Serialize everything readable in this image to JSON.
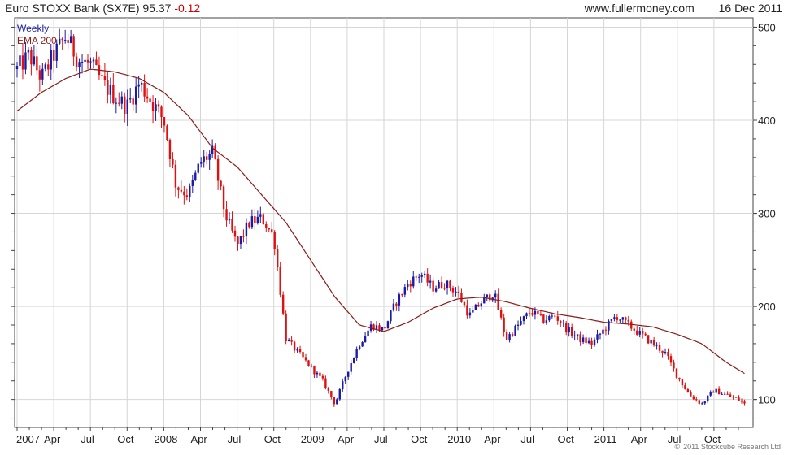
{
  "header": {
    "title": "Euro STOXX Bank (SX7E)",
    "last_price": "95.37",
    "change": "-0.12",
    "site": "www.fullermoney.com",
    "date": "16 Dec 2011"
  },
  "legend": {
    "weekly_label": "Weekly",
    "ema_label": "EMA 200"
  },
  "credit": {
    "mark": "©",
    "text": "2011 Stockcube Research Ltd"
  },
  "colors": {
    "up": "#1a1aa6",
    "down": "#e01010",
    "ema": "#8b1a1a",
    "grid": "#d6d6d6",
    "axis": "#444444",
    "text": "#222222"
  },
  "chart_data": {
    "type": "line",
    "x_axis": {
      "range": [
        "2007-01",
        "2011-12"
      ],
      "tick_labels": [
        "2007",
        "Apr",
        "Jul",
        "Oct",
        "2008",
        "Apr",
        "Jul",
        "Oct",
        "2009",
        "Apr",
        "Jul",
        "Oct",
        "2010",
        "Apr",
        "Jul",
        "Oct",
        "2011",
        "Apr",
        "Jul",
        "Oct"
      ],
      "tick_months": [
        0,
        3,
        6,
        9,
        12,
        15,
        18,
        21,
        24,
        27,
        30,
        33,
        36,
        39,
        42,
        45,
        48,
        51,
        54,
        57
      ]
    },
    "y_axis": {
      "range": [
        70,
        510
      ],
      "tick_labels": [
        "100",
        "200",
        "300",
        "400",
        "500"
      ],
      "ticks": [
        100,
        200,
        300,
        400,
        500
      ],
      "position": "right"
    },
    "grid": true,
    "legend_placement": "top-left",
    "series": [
      {
        "name": "Weekly",
        "style": "candles",
        "x_months": [
          0,
          1,
          2,
          3,
          4,
          5,
          6,
          7,
          8,
          9,
          10,
          11,
          12,
          13,
          14,
          15,
          16,
          17,
          18,
          19,
          20,
          21,
          22,
          23,
          24,
          25,
          26,
          27,
          28,
          29,
          30,
          31,
          32,
          33,
          34,
          35,
          36,
          37,
          38,
          39,
          40,
          41,
          42,
          43,
          44,
          45,
          46,
          47,
          48,
          49,
          50,
          51,
          52,
          53,
          54,
          55,
          56,
          57,
          58,
          59,
          59.5
        ],
        "values": [
          455,
          470,
          445,
          470,
          490,
          465,
          460,
          440,
          425,
          415,
          440,
          420,
          400,
          330,
          320,
          355,
          365,
          300,
          265,
          290,
          295,
          275,
          165,
          150,
          135,
          120,
          95,
          130,
          160,
          180,
          175,
          205,
          225,
          235,
          220,
          225,
          215,
          190,
          205,
          215,
          165,
          180,
          195,
          185,
          190,
          175,
          165,
          160,
          175,
          190,
          180,
          170,
          160,
          150,
          125,
          105,
          95,
          110,
          105,
          100,
          95
        ]
      },
      {
        "name": "EMA 200",
        "style": "line",
        "x_months": [
          0,
          2,
          4,
          6,
          8,
          10,
          12,
          14,
          16,
          18,
          20,
          22,
          24,
          26,
          28,
          30,
          32,
          34,
          36,
          38,
          40,
          42,
          44,
          46,
          48,
          50,
          52,
          54,
          56,
          58,
          59.5
        ],
        "values": [
          410,
          430,
          445,
          455,
          452,
          445,
          430,
          405,
          370,
          350,
          320,
          290,
          250,
          210,
          180,
          173,
          183,
          198,
          208,
          210,
          205,
          198,
          192,
          188,
          183,
          181,
          178,
          170,
          160,
          140,
          128
        ]
      }
    ]
  }
}
